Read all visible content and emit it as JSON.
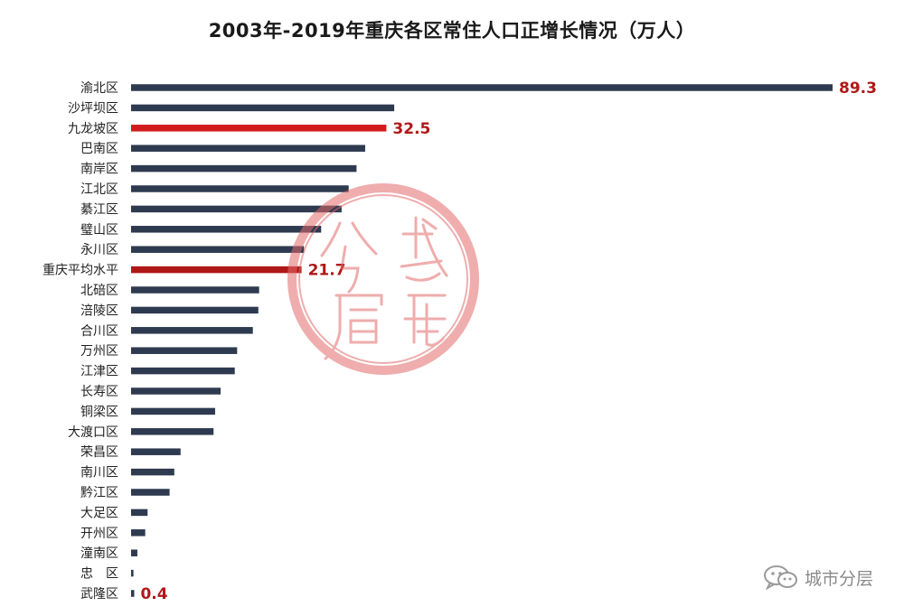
{
  "chart_data": {
    "type": "bar",
    "orientation": "horizontal",
    "title": "2003年-2019年重庆各区常住人口正增长情况（万人）",
    "categories": [
      "渝北区",
      "沙坪坝区",
      "九龙坡区",
      "巴南区",
      "南岸区",
      "江北区",
      "綦江区",
      "璧山区",
      "永川区",
      "重庆平均水平",
      "北碚区",
      "涪陵区",
      "合川区",
      "万州区",
      "江津区",
      "长寿区",
      "铜梁区",
      "大渡口区",
      "荣昌区",
      "南川区",
      "黔江区",
      "大足区",
      "开州区",
      "潼南区",
      "忠　区",
      "武隆区"
    ],
    "values": [
      89.3,
      33.5,
      32.5,
      29.8,
      28.7,
      27.7,
      26.8,
      24.2,
      22.0,
      21.7,
      16.3,
      16.2,
      15.5,
      13.5,
      13.2,
      11.4,
      10.7,
      10.5,
      6.3,
      5.5,
      4.9,
      2.1,
      1.8,
      0.8,
      0.3,
      0.4
    ],
    "data_labels": {
      "渝北区": "89.3",
      "九龙坡区": "32.5",
      "重庆平均水平": "21.7",
      "武隆区": "0.4"
    },
    "xlim": [
      0,
      89.3
    ],
    "colors": {
      "default": "#2e3a4f",
      "highlight_district": "#d21c1c",
      "highlight_average": "#b01818",
      "label": "#b01818"
    },
    "highlighted": {
      "九龙坡区": "highlight_district",
      "重庆平均水平": "highlight_average"
    },
    "grid": false,
    "legend": "none"
  },
  "watermark": {
    "icon": "wechat-icon",
    "text": "城市分层"
  },
  "seal": {
    "text": "城市分层",
    "color": "#e36b6b"
  }
}
